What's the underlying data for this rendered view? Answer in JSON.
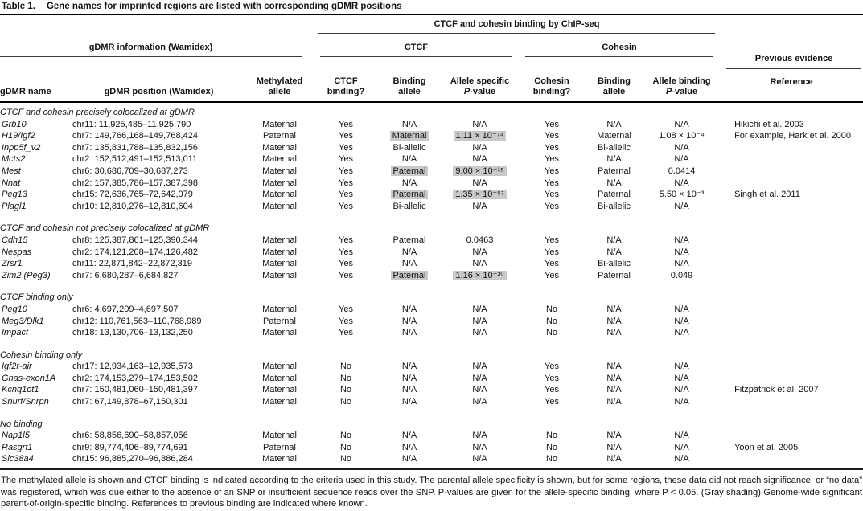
{
  "colors": {
    "shade_highlight": "#c9c9c9",
    "rule_thin": "#3c3c3c",
    "rule_thick": "#000000",
    "text": "#121212"
  },
  "caption": {
    "label": "Table 1.",
    "text": "Gene names for imprinted regions are listed with corresponding gDMR positions"
  },
  "header": {
    "chipseq_group": "CTCF and cohesin binding by ChIP-seq",
    "gdmr_group": "gDMR information (Wamidex)",
    "ctcf_group": "CTCF",
    "cohesin_group": "Cohesin",
    "previous_evidence": "Previous evidence",
    "reference": "Reference",
    "col_gdmr_name": "gDMR name",
    "col_gdmr_pos": "gDMR position (Wamidex)",
    "col_meth_1": "Methylated",
    "col_meth_2": "allele",
    "col_ctcfb_1": "CTCF",
    "col_ctcfb_2": "binding?",
    "col_ba_1": "Binding",
    "col_ba_2": "allele",
    "col_allele_specific_1": "Allele specific",
    "col_cohb_1": "Cohesin",
    "col_cohb_2": "binding?",
    "col_allele_binding_1": "Allele binding",
    "pvalue_p": "P",
    "pvalue_rest": "-value"
  },
  "table": {
    "col_keys": [
      "name",
      "pos",
      "meth",
      "cb",
      "ba",
      "p",
      "cob",
      "coba",
      "cop",
      "ref"
    ],
    "sections": [
      {
        "label": "CTCF and cohesin precisely colocalized at gDMR",
        "rows": [
          {
            "name": "Grb10",
            "pos": "chr11: 11,925,485–11,925,790",
            "meth": "Maternal",
            "cb": "Yes",
            "ba": "N/A",
            "p": "N/A",
            "cob": "Yes",
            "coba": "N/A",
            "cop": "N/A",
            "ref": "Hikichi et al. 2003"
          },
          {
            "name": "H19/Igf2",
            "pos": "chr7: 149,766,168–149,768,424",
            "meth": "Paternal",
            "cb": "Yes",
            "ba": "Maternal",
            "p": "1.11 × 10⁻⁷⁴",
            "cob": "Yes",
            "coba": "Maternal",
            "cop": "1.08 × 10⁻⁴",
            "ref": "For example, Hark et al. 2000",
            "shaded": [
              "ba",
              "p"
            ]
          },
          {
            "name": "Inpp5f_v2",
            "pos": "chr7: 135,831,788–135,832,156",
            "meth": "Maternal",
            "cb": "Yes",
            "ba": "Bi-allelic",
            "p": "N/A",
            "cob": "Yes",
            "coba": "Bi-allelic",
            "cop": "N/A",
            "ref": ""
          },
          {
            "name": "Mcts2",
            "pos": "chr2: 152,512,491–152,513,011",
            "meth": "Maternal",
            "cb": "Yes",
            "ba": "N/A",
            "p": "N/A",
            "cob": "Yes",
            "coba": "N/A",
            "cop": "N/A",
            "ref": ""
          },
          {
            "name": "Mest",
            "pos": "chr6: 30,686,709–30,687,273",
            "meth": "Maternal",
            "cb": "Yes",
            "ba": "Paternal",
            "p": "9.00 × 10⁻¹⁵",
            "cob": "Yes",
            "coba": "Paternal",
            "cop": "0.0414",
            "ref": "",
            "shaded": [
              "ba",
              "p"
            ]
          },
          {
            "name": "Nnat",
            "pos": "chr2: 157,385,786–157,387,398",
            "meth": "Maternal",
            "cb": "Yes",
            "ba": "N/A",
            "p": "N/A",
            "cob": "Yes",
            "coba": "N/A",
            "cop": "N/A",
            "ref": ""
          },
          {
            "name": "Peg13",
            "pos": "chr15: 72,636,765–72,642,079",
            "meth": "Maternal",
            "cb": "Yes",
            "ba": "Paternal",
            "p": "1.35 × 10⁻⁵⁷",
            "cob": "Yes",
            "coba": "Paternal",
            "cop": "5.50 × 10⁻³",
            "ref": "Singh et al. 2011",
            "shaded": [
              "ba",
              "p"
            ]
          },
          {
            "name": "Plagl1",
            "pos": "chr10: 12,810,276–12,810,604",
            "meth": "Maternal",
            "cb": "Yes",
            "ba": "Bi-allelic",
            "p": "N/A",
            "cob": "Yes",
            "coba": "Bi-allelic",
            "cop": "N/A",
            "ref": ""
          }
        ]
      },
      {
        "label": "CTCF and cohesin not precisely colocalized at gDMR",
        "rows": [
          {
            "name": "Cdh15",
            "pos": "chr8: 125,387,861–125,390,344",
            "meth": "Maternal",
            "cb": "Yes",
            "ba": "Paternal",
            "p": "0.0463",
            "cob": "Yes",
            "coba": "N/A",
            "cop": "N/A",
            "ref": ""
          },
          {
            "name": "Nespas",
            "pos": "chr2: 174,121,208–174,126,482",
            "meth": "Maternal",
            "cb": "Yes",
            "ba": "N/A",
            "p": "N/A",
            "cob": "Yes",
            "coba": "N/A",
            "cop": "N/A",
            "ref": ""
          },
          {
            "name": "Zrsr1",
            "pos": "chr11: 22,871,842–22,872,319",
            "meth": "Maternal",
            "cb": "Yes",
            "ba": "N/A",
            "p": "N/A",
            "cob": "Yes",
            "coba": "Bi-allelic",
            "cop": "N/A",
            "ref": ""
          },
          {
            "name": "Zim2 (Peg3)",
            "pos": "chr7: 6,680,287–6,684,827",
            "meth": "Maternal",
            "cb": "Yes",
            "ba": "Paternal",
            "p": "1.16 × 10⁻³⁰",
            "cob": "Yes",
            "coba": "Paternal",
            "cop": "0.049",
            "ref": "",
            "shaded": [
              "ba",
              "p"
            ]
          }
        ]
      },
      {
        "label": "CTCF binding only",
        "rows": [
          {
            "name": "Peg10",
            "pos": "chr6: 4,697,209–4,697,507",
            "meth": "Maternal",
            "cb": "Yes",
            "ba": "N/A",
            "p": "N/A",
            "cob": "No",
            "coba": "N/A",
            "cop": "N/A",
            "ref": ""
          },
          {
            "name": "Meg3/Dlk1",
            "pos": "chr12: 110,761,563–110,768,989",
            "meth": "Paternal",
            "cb": "Yes",
            "ba": "N/A",
            "p": "N/A",
            "cob": "No",
            "coba": "N/A",
            "cop": "N/A",
            "ref": ""
          },
          {
            "name": "Impact",
            "pos": "chr18: 13,130,706–13,132,250",
            "meth": "Maternal",
            "cb": "Yes",
            "ba": "N/A",
            "p": "N/A",
            "cob": "No",
            "coba": "N/A",
            "cop": "N/A",
            "ref": ""
          }
        ]
      },
      {
        "label": "Cohesin binding only",
        "rows": [
          {
            "name": "Igf2r-air",
            "pos": "chr17: 12,934,163–12,935,573",
            "meth": "Maternal",
            "cb": "No",
            "ba": "N/A",
            "p": "N/A",
            "cob": "Yes",
            "coba": "N/A",
            "cop": "N/A",
            "ref": ""
          },
          {
            "name": "Gnas-exon1A",
            "pos": "chr2: 174,153,279–174,153,502",
            "meth": "Maternal",
            "cb": "No",
            "ba": "N/A",
            "p": "N/A",
            "cob": "Yes",
            "coba": "N/A",
            "cop": "N/A",
            "ref": ""
          },
          {
            "name": "Kcnq1ot1",
            "pos": "chr7: 150,481,060–150,481,397",
            "meth": "Maternal",
            "cb": "No",
            "ba": "N/A",
            "p": "N/A",
            "cob": "Yes",
            "coba": "N/A",
            "cop": "N/A",
            "ref": "Fitzpatrick et al. 2007"
          },
          {
            "name": "Snurf/Snrpn",
            "pos": "chr7: 67,149,878–67,150,301",
            "meth": "Maternal",
            "cb": "No",
            "ba": "N/A",
            "p": "N/A",
            "cob": "Yes",
            "coba": "N/A",
            "cop": "N/A",
            "ref": ""
          }
        ]
      },
      {
        "label": "No binding",
        "rows": [
          {
            "name": "Nap1l5",
            "pos": "chr6: 58,856,690–58,857,056",
            "meth": "Maternal",
            "cb": "No",
            "ba": "N/A",
            "p": "N/A",
            "cob": "No",
            "coba": "N/A",
            "cop": "N/A",
            "ref": ""
          },
          {
            "name": "Rasgrf1",
            "pos": "chr9: 89,774,406–89,774,691",
            "meth": "Paternal",
            "cb": "No",
            "ba": "N/A",
            "p": "N/A",
            "cob": "No",
            "coba": "N/A",
            "cop": "N/A",
            "ref": "Yoon et al. 2005"
          },
          {
            "name": "Slc38a4",
            "pos": "chr15: 96,885,270–96,886,284",
            "meth": "Maternal",
            "cb": "No",
            "ba": "N/A",
            "p": "N/A",
            "cob": "No",
            "coba": "N/A",
            "cop": "N/A",
            "ref": ""
          }
        ]
      }
    ]
  },
  "footnote": "The methylated allele is shown and CTCF binding is indicated according to the criteria used in this study. The parental allele specificity is shown, but for some regions, these data did not reach significance, or “no data” was registered, which was due either to the absence of an SNP or insufficient sequence reads over the SNP. P-values are given for the allele-specific binding, where P < 0.05. (Gray shading) Genome-wide significant parent-of-origin-specific binding. References to previous binding are indicated where known."
}
